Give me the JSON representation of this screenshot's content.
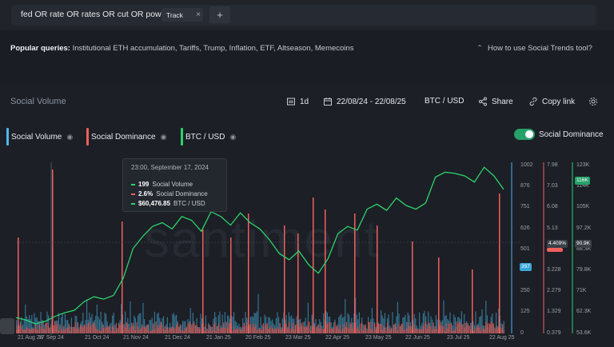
{
  "search": {
    "query": "fed OR rate OR rates OR cut OR powell",
    "track_label": "Track",
    "close_glyph": "×",
    "add_glyph": "+"
  },
  "popular": {
    "label": "Popular queries:",
    "items": "Institutional ETH accumulation, Tariffs, Trump, Inflation, ETF, Altseason, Memecoins",
    "howto": "How to use Social Trends tool?"
  },
  "panel": {
    "title": "Social Volume",
    "interval": "1d",
    "date_range": "22/08/24 - 22/08/25",
    "pair": "BTC / USD",
    "share_label": "Share",
    "copy_link_label": "Copy link"
  },
  "legend": [
    {
      "label": "Social Volume",
      "color": "#4fb7e8"
    },
    {
      "label": "Social Dominance",
      "color": "#f0605c"
    },
    {
      "label": "BTC / USD",
      "color": "#2cd36c"
    }
  ],
  "toggle": {
    "label": "Social Dominance",
    "on": true
  },
  "watermark": "santiment",
  "tooltip": {
    "title": "23:00, September 17, 2024",
    "rows": [
      {
        "value": "199",
        "label": "Social Volume",
        "color": "#4fb7e8"
      },
      {
        "value": "2.6%",
        "label": "Social Dominance",
        "color": "#f0605c"
      },
      {
        "value": "$60,476.85",
        "label": "BTC / USD",
        "color": "#2cd36c"
      }
    ]
  },
  "axes": {
    "volume_ticks": [
      "1002",
      "876",
      "751",
      "626",
      "501",
      "376",
      "250",
      "125",
      "0"
    ],
    "volume_current": "397",
    "dominance_ticks": [
      "7.98",
      "7.03",
      "6.08",
      "5.13",
      "4.18",
      "3.228",
      "2.279",
      "1.329",
      "0.379"
    ],
    "dominance_hover": "4.409%",
    "btc_ticks": [
      "123K",
      "114K",
      "105K",
      "97.2K",
      "88.3K",
      "79.8K",
      "71K",
      "62.3K",
      "53.6K"
    ],
    "btc_current": "116K",
    "btc_hover": "90.9K",
    "x_labels": [
      "21 Aug 24",
      "17 Sep 24",
      "21 Oct 24",
      "21 Nov 24",
      "21 Dec 24",
      "21 Jan 25",
      "20 Feb 25",
      "23 Mar 25",
      "22 Apr 25",
      "23 May 25",
      "22 Jun 25",
      "23 Jul 25",
      "22 Aug 25"
    ]
  },
  "chart_data": {
    "type": "line",
    "x_range": [
      "2024-08-22",
      "2025-08-22"
    ],
    "series": [
      {
        "name": "BTC / USD",
        "axis": "right-outer",
        "color": "#2cd36c",
        "values": [
          60000,
          59000,
          57500,
          58500,
          60500,
          62000,
          63000,
          66500,
          68500,
          67500,
          69000,
          76000,
          88000,
          93000,
          97000,
          98500,
          96000,
          101000,
          99500,
          95000,
          103000,
          101000,
          97500,
          102500,
          98500,
          96000,
          91500,
          86000,
          83500,
          87000,
          81500,
          78000,
          84000,
          94000,
          97000,
          95500,
          104000,
          106000,
          103500,
          108500,
          105500,
          104000,
          106500,
          117000,
          119000,
          118500,
          117500,
          115000,
          121000,
          117500,
          112000
        ]
      },
      {
        "name": "Social Volume",
        "axis": "right-inner",
        "color": "#4fb7e8"
      },
      {
        "name": "Social Dominance",
        "axis": "right-middle",
        "color": "#f0605c"
      }
    ],
    "ylim_btc": [
      53600,
      123000
    ],
    "ylim_volume": [
      0,
      1002
    ],
    "ylim_dominance": [
      0.379,
      7.98
    ],
    "grid": false
  }
}
